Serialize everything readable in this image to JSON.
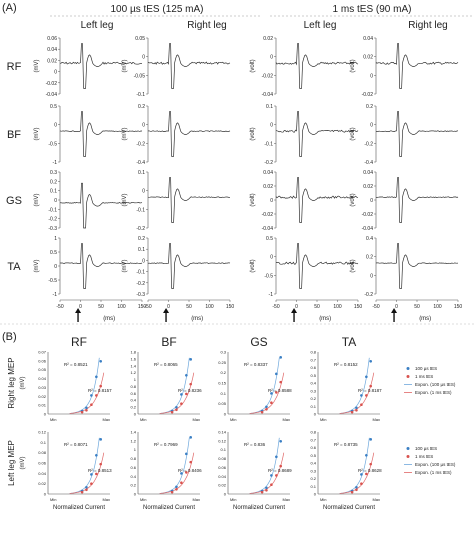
{
  "panel_a": {
    "label": "(A)",
    "conditions": [
      "100 µs tES (125 mA)",
      "1 ms tES (90 mA)"
    ],
    "legs": [
      "Left leg",
      "Right leg",
      "Left leg",
      "Right leg"
    ],
    "muscles": [
      "RF",
      "BF",
      "GS",
      "TA"
    ],
    "xlabel": "(ms)",
    "x_ticks": [
      "-50",
      "0",
      "50",
      "100",
      "150"
    ],
    "unit_mv": "(mV)",
    "unit_volt": "(volt)",
    "y_ticks": [
      [
        [
          "0.06",
          "0.04",
          "0.02",
          "0",
          "-0.02",
          "-0.04"
        ],
        [
          "0.05",
          "0",
          "-0.05",
          "-0.1"
        ],
        [
          "0.02",
          "0",
          "-0.02",
          "-0.04"
        ],
        [
          "0.04",
          "0.02",
          "0",
          "-0.02"
        ]
      ],
      [
        [
          "0.5",
          "0",
          "-0.5",
          "-1"
        ],
        [
          "0.2",
          "0",
          "-0.2",
          "-0.4"
        ],
        [
          "0.1",
          "0",
          "-0.1",
          "-0.2"
        ],
        [
          "0.2",
          "0",
          "-0.2",
          "-0.4"
        ]
      ],
      [
        [
          "0.3",
          "0.2",
          "0.1",
          "0",
          "-0.1",
          "-0.2",
          "-0.3"
        ],
        [
          "0.1",
          "0",
          "-0.1",
          "-0.2"
        ],
        [
          "0.04",
          "0.02",
          "0",
          "-0.02",
          "-0.04"
        ],
        [
          "0.04",
          "0.02",
          "0",
          "-0.02",
          "-0.04"
        ]
      ],
      [
        [
          "1",
          "0.5",
          "0",
          "-0.5",
          "-1"
        ],
        [
          "0.2",
          "0.1",
          "0",
          "-0.1",
          "-0.2",
          "-0.3"
        ],
        [
          "0.5",
          "0",
          "-0.5",
          "-1"
        ],
        [
          "0.4",
          "0.2",
          "0",
          "-0.2"
        ]
      ]
    ]
  },
  "panel_b": {
    "label": "(B)",
    "muscles": [
      "RF",
      "BF",
      "GS",
      "TA"
    ],
    "row_labels": [
      "Right leg MEP",
      "Left leg MEP"
    ],
    "unit": "(mV)",
    "xlabel": "Normalized Current",
    "x_min_label": "Min",
    "x_max_label": "Max",
    "legend": [
      "100 µs tES",
      "1 ms tES",
      "Expon. (100 µs tES)",
      "Expon. (1 ms tES)"
    ],
    "y_ticks": [
      [
        [
          "0.07",
          "0.06",
          "0.05",
          "0.04",
          "0.03",
          "0.02",
          "0.01",
          "0"
        ],
        [
          "1.8",
          "1.6",
          "1.4",
          "1.2",
          "1",
          "0.8",
          "0.6",
          "0.4",
          "0.2",
          "0"
        ],
        [
          "0.3",
          "0.25",
          "0.2",
          "0.15",
          "0.1",
          "0.05",
          "0"
        ],
        [
          "0.8",
          "0.7",
          "0.6",
          "0.5",
          "0.4",
          "0.3",
          "0.2",
          "0.1",
          "0"
        ]
      ],
      [
        [
          "0.12",
          "0.1",
          "0.08",
          "0.06",
          "0.04",
          "0.02",
          "0"
        ],
        [
          "1.4",
          "1.2",
          "1",
          "0.8",
          "0.6",
          "0.4",
          "0.2",
          "0"
        ],
        [
          "0.14",
          "0.12",
          "0.1",
          "0.08",
          "0.06",
          "0.04",
          "0.02",
          "0"
        ],
        [
          "0.8",
          "0.7",
          "0.6",
          "0.5",
          "0.4",
          "0.3",
          "0.2",
          "0.1",
          "0"
        ]
      ]
    ],
    "r2": [
      [
        [
          "R² = 0.8521",
          "R² = 0.8157"
        ],
        [
          "R² = 0.8065",
          "R² = 0.8236"
        ],
        [
          "R² = 0.8337",
          "R² = 0.8588"
        ],
        [
          "R² = 0.8152",
          "R² = 0.8187"
        ]
      ],
      [
        [
          "R² = 0.8071",
          "R² = 0.8513"
        ],
        [
          "R² = 0.7969",
          "R² = 0.8406"
        ],
        [
          "R² = 0.836",
          "R² = 0.8689"
        ],
        [
          "R² = 0.8735",
          "R² = 0.8628"
        ]
      ]
    ]
  },
  "colors": {
    "trace": "#333333",
    "blue": "#3a7fc4",
    "red": "#d9534f",
    "fit_blue": "#6fa8dc",
    "fit_red": "#e06666"
  },
  "chart_data": [
    {
      "type": "line",
      "title": "",
      "description_source": "Panel A: MEP waveforms (qualitative traces, 16 subplots)",
      "xlabel": "(ms)",
      "xlim": [
        -50,
        150
      ]
    },
    {
      "type": "scatter",
      "xlabel": "Normalized Current",
      "series": [
        {
          "name": "100 µs tES",
          "x": [
            0.55,
            0.62,
            0.7,
            0.78,
            0.85
          ],
          "y_fraction_of_axis": [
            0.05,
            0.1,
            0.3,
            0.6,
            0.85
          ]
        },
        {
          "name": "1 ms tES",
          "x": [
            0.55,
            0.62,
            0.7,
            0.78,
            0.85
          ],
          "y_fraction_of_axis": [
            0.03,
            0.06,
            0.15,
            0.3,
            0.45
          ]
        }
      ]
    }
  ]
}
